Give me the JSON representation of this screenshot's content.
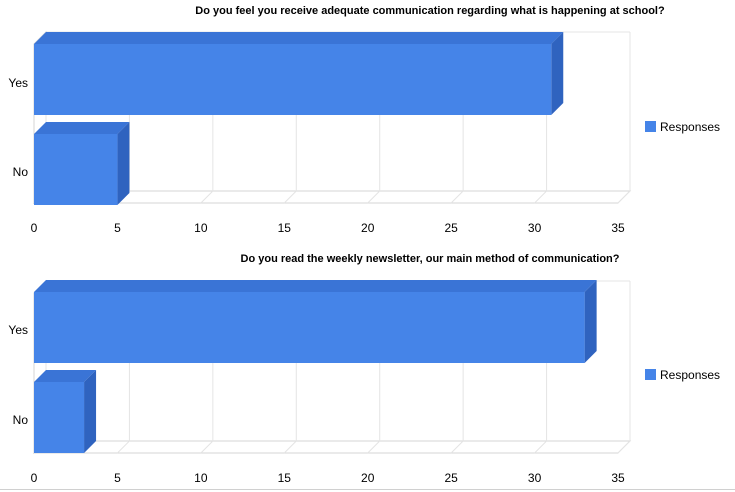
{
  "colors": {
    "bar_front": "#4584e8",
    "bar_top": "#3a74d6",
    "bar_side": "#2f63bf",
    "grid": "#e4e4e4",
    "wall_side": "#d6d6d6"
  },
  "chart_data": [
    {
      "type": "bar",
      "orientation": "horizontal",
      "title": "Do you feel you receive adequate communication regarding what is happening at school?",
      "categories": [
        "Yes",
        "No"
      ],
      "series": [
        {
          "name": "Responses",
          "values": [
            31,
            5
          ]
        }
      ],
      "xlim": [
        0,
        35
      ],
      "xticks": [
        "0",
        "5",
        "10",
        "15",
        "20",
        "25",
        "30",
        "35"
      ],
      "grid": true,
      "legend": "right"
    },
    {
      "type": "bar",
      "orientation": "horizontal",
      "title": "Do you read the weekly newsletter, our main method of communication?",
      "categories": [
        "Yes",
        "No"
      ],
      "series": [
        {
          "name": "Responses",
          "values": [
            33,
            3
          ]
        }
      ],
      "xlim": [
        0,
        35
      ],
      "xticks": [
        "0",
        "5",
        "10",
        "15",
        "20",
        "25",
        "30",
        "35"
      ],
      "grid": true,
      "legend": "right"
    }
  ]
}
